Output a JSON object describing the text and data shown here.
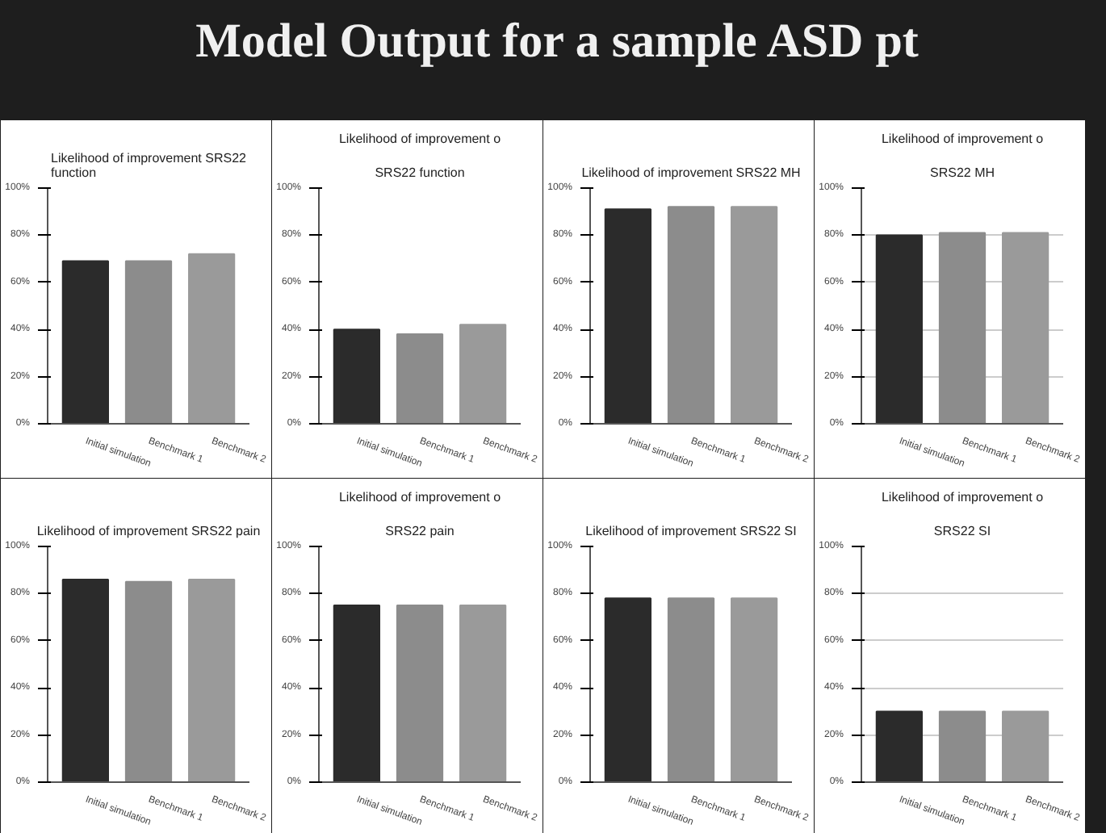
{
  "chart_data": [
    {
      "type": "other",
      "title": "Model Output for a sample ASD pt"
    },
    {
      "type": "bar",
      "title": "Likelihood of improvement SRS22 function",
      "categories": [
        "Initial simulation",
        "Benchmark 1",
        "Benchmark 2"
      ],
      "values": [
        69,
        69,
        72
      ],
      "colors": [
        "#2b2b2b",
        "#8c8c8c",
        "#9a9a9a"
      ],
      "ylim": [
        0,
        100
      ],
      "yticks": [
        {
          "value": 0,
          "label": "0%"
        },
        {
          "value": 20,
          "label": "20%"
        },
        {
          "value": 40,
          "label": "40%"
        },
        {
          "value": 60,
          "label": "60%"
        },
        {
          "value": 80,
          "label": "80%"
        },
        {
          "value": 100,
          "label": "100%"
        }
      ]
    },
    {
      "type": "bar",
      "title": "Likelihood of improvement o",
      "subtitle": "SRS22 function",
      "categories": [
        "Initial simulation",
        "Benchmark 1",
        "Benchmark 2"
      ],
      "values": [
        40,
        38,
        42
      ],
      "colors": [
        "#2b2b2b",
        "#8c8c8c",
        "#9a9a9a"
      ],
      "ylim": [
        0,
        100
      ],
      "yticks": [
        {
          "value": 0,
          "label": "0%"
        },
        {
          "value": 20,
          "label": "20%"
        },
        {
          "value": 40,
          "label": "40%"
        },
        {
          "value": 60,
          "label": "60%"
        },
        {
          "value": 80,
          "label": "80%"
        },
        {
          "value": 100,
          "label": "100%"
        }
      ]
    },
    {
      "type": "bar",
      "title": "Likelihood of improvement SRS22 MH",
      "categories": [
        "Initial simulation",
        "Benchmark 1",
        "Benchmark 2"
      ],
      "values": [
        91,
        92,
        92
      ],
      "colors": [
        "#2b2b2b",
        "#8c8c8c",
        "#9a9a9a"
      ],
      "ylim": [
        0,
        100
      ],
      "yticks": [
        {
          "value": 0,
          "label": "0%"
        },
        {
          "value": 20,
          "label": "20%"
        },
        {
          "value": 40,
          "label": "40%"
        },
        {
          "value": 60,
          "label": "60%"
        },
        {
          "value": 80,
          "label": "80%"
        },
        {
          "value": 100,
          "label": "100%"
        }
      ]
    },
    {
      "type": "bar",
      "title": "Likelihood of improvement o",
      "subtitle": "SRS22 MH",
      "categories": [
        "Initial simulation",
        "Benchmark 1",
        "Benchmark 2"
      ],
      "values": [
        80,
        81,
        81
      ],
      "colors": [
        "#2b2b2b",
        "#8c8c8c",
        "#9a9a9a"
      ],
      "ylim": [
        0,
        100
      ],
      "yticks": [
        {
          "value": 0,
          "label": "0%"
        },
        {
          "value": 20,
          "label": "20%"
        },
        {
          "value": 40,
          "label": "40%"
        },
        {
          "value": 60,
          "label": "60%"
        },
        {
          "value": 80,
          "label": "80%"
        },
        {
          "value": 100,
          "label": "100%"
        }
      ],
      "grid": "y"
    },
    {
      "type": "bar",
      "title": "Likelihood of improvement SRS22 pain",
      "categories": [
        "Initial simulation",
        "Benchmark 1",
        "Benchmark 2"
      ],
      "values": [
        86,
        85,
        86
      ],
      "colors": [
        "#2b2b2b",
        "#8c8c8c",
        "#9a9a9a"
      ],
      "ylim": [
        0,
        100
      ],
      "yticks": [
        {
          "value": 0,
          "label": "0%"
        },
        {
          "value": 20,
          "label": "20%"
        },
        {
          "value": 40,
          "label": "40%"
        },
        {
          "value": 60,
          "label": "60%"
        },
        {
          "value": 80,
          "label": "80%"
        },
        {
          "value": 100,
          "label": "100%"
        }
      ]
    },
    {
      "type": "bar",
      "title": "Likelihood of improvement o",
      "subtitle": "SRS22 pain",
      "categories": [
        "Initial simulation",
        "Benchmark 1",
        "Benchmark 2"
      ],
      "values": [
        75,
        75,
        75
      ],
      "colors": [
        "#2b2b2b",
        "#8c8c8c",
        "#9a9a9a"
      ],
      "ylim": [
        0,
        100
      ],
      "yticks": [
        {
          "value": 0,
          "label": "0%"
        },
        {
          "value": 20,
          "label": "20%"
        },
        {
          "value": 40,
          "label": "40%"
        },
        {
          "value": 60,
          "label": "60%"
        },
        {
          "value": 80,
          "label": "80%"
        },
        {
          "value": 100,
          "label": "100%"
        }
      ]
    },
    {
      "type": "bar",
      "title": "Likelihood of improvement SRS22 SI",
      "categories": [
        "Initial simulation",
        "Benchmark 1",
        "Benchmark 2"
      ],
      "values": [
        78,
        78,
        78
      ],
      "colors": [
        "#2b2b2b",
        "#8c8c8c",
        "#9a9a9a"
      ],
      "ylim": [
        0,
        100
      ],
      "yticks": [
        {
          "value": 0,
          "label": "0%"
        },
        {
          "value": 20,
          "label": "20%"
        },
        {
          "value": 40,
          "label": "40%"
        },
        {
          "value": 60,
          "label": "60%"
        },
        {
          "value": 80,
          "label": "80%"
        },
        {
          "value": 100,
          "label": "100%"
        }
      ]
    },
    {
      "type": "bar",
      "title": "Likelihood of improvement o",
      "subtitle": "SRS22 SI",
      "categories": [
        "Initial simulation",
        "Benchmark 1",
        "Benchmark 2"
      ],
      "values": [
        30,
        30,
        30
      ],
      "colors": [
        "#2b2b2b",
        "#8c8c8c",
        "#9a9a9a"
      ],
      "ylim": [
        0,
        100
      ],
      "yticks": [
        {
          "value": 0,
          "label": "0%"
        },
        {
          "value": 20,
          "label": "20%"
        },
        {
          "value": 40,
          "label": "40%"
        },
        {
          "value": 60,
          "label": "60%"
        },
        {
          "value": 80,
          "label": "80%"
        },
        {
          "value": 100,
          "label": "100%"
        }
      ],
      "grid": "y"
    }
  ]
}
